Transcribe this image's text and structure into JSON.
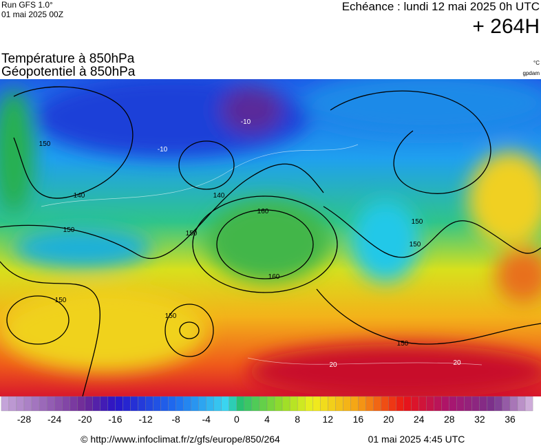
{
  "header": {
    "run": "Run GFS 1.0°",
    "run_time": "01 mai 2025 00Z",
    "valid": "Echéance : lundi 12 mai 2025 0h UTC",
    "lead": "+ 264H"
  },
  "titles": {
    "line1": "Température à 850hPa",
    "line2": "Géopotentiel à 850hPa",
    "unit1": "°C",
    "unit2": "gpdam"
  },
  "map": {
    "contour_labels": [
      "150",
      "140",
      "150",
      "160",
      "160",
      "150",
      "150",
      "150",
      "150",
      "150",
      "150",
      "140",
      "-10",
      "-10",
      "20",
      "20"
    ]
  },
  "colorbar": {
    "ticks": [
      -28,
      -24,
      -20,
      -16,
      -12,
      -8,
      -4,
      0,
      4,
      8,
      12,
      16,
      20,
      24,
      28,
      32,
      36
    ]
  },
  "footer": {
    "url": "© http://www.infoclimat.fr/z/gfs/europe/850/264",
    "date": "01 mai 2025  4:45 UTC"
  }
}
